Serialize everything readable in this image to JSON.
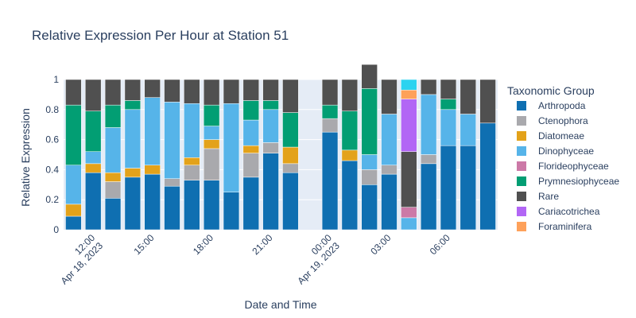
{
  "chart_data": {
    "type": "bar",
    "stacked": true,
    "title": "Relative Expression Per Hour at Station 51",
    "xlabel": "Date and Time",
    "ylabel": "Relative Expression",
    "ylim": [
      0,
      1
    ],
    "yticks": [
      "0",
      "0.2",
      "0.4",
      "0.6",
      "0.8",
      "1"
    ],
    "categories": [
      "2023-04-18 11:00",
      "2023-04-18 12:00",
      "2023-04-18 13:00",
      "2023-04-18 14:00",
      "2023-04-18 15:00",
      "2023-04-18 16:00",
      "2023-04-18 17:00",
      "2023-04-18 18:00",
      "2023-04-18 19:00",
      "2023-04-18 20:00",
      "2023-04-18 21:00",
      "2023-04-18 22:00",
      "2023-04-19 00:00",
      "2023-04-19 01:00",
      "2023-04-19 02:00",
      "2023-04-19 03:00",
      "2023-04-19 04:00",
      "2023-04-19 05:00",
      "2023-04-19 06:00",
      "2023-04-19 07:00",
      "2023-04-19 08:00"
    ],
    "x_tick_labels": [
      {
        "category": "2023-04-18 12:00",
        "lines": [
          "12:00",
          "Apr 18, 2023"
        ]
      },
      {
        "category": "2023-04-18 15:00",
        "lines": [
          "15:00"
        ]
      },
      {
        "category": "2023-04-18 18:00",
        "lines": [
          "18:00"
        ]
      },
      {
        "category": "2023-04-18 21:00",
        "lines": [
          "21:00"
        ]
      },
      {
        "category": "2023-04-19 00:00",
        "lines": [
          "00:00",
          "Apr 19, 2023"
        ]
      },
      {
        "category": "2023-04-19 03:00",
        "lines": [
          "03:00"
        ]
      },
      {
        "category": "2023-04-19 06:00",
        "lines": [
          "06:00"
        ]
      }
    ],
    "legend": {
      "title": "Taxonomic Group",
      "position": "right"
    },
    "grid": true,
    "series": [
      {
        "name": "Arthropoda",
        "color": "#0f6fb1",
        "values": [
          0.09,
          0.38,
          0.21,
          0.35,
          0.37,
          0.29,
          0.33,
          0.33,
          0.25,
          0.35,
          0.51,
          0.38,
          0.65,
          0.46,
          0.3,
          0.37,
          0.0,
          0.44,
          0.56,
          0.56,
          0.71
        ]
      },
      {
        "name": "Ctenophora",
        "color": "#a9a9ad",
        "values": [
          0.0,
          0.0,
          0.11,
          0.0,
          0.0,
          0.05,
          0.1,
          0.21,
          0.0,
          0.16,
          0.07,
          0.06,
          0.09,
          0.0,
          0.1,
          0.06,
          0.0,
          0.06,
          0.0,
          0.0,
          0.0
        ]
      },
      {
        "name": "Diatomeae",
        "color": "#e3a21a",
        "values": [
          0.08,
          0.06,
          0.06,
          0.06,
          0.06,
          0.0,
          0.05,
          0.06,
          0.0,
          0.05,
          0.0,
          0.11,
          0.0,
          0.07,
          0.0,
          0.0,
          0.0,
          0.0,
          0.0,
          0.0,
          0.0
        ]
      },
      {
        "name": "Dinophyceae",
        "color": "#56b4e9",
        "values": [
          0.26,
          0.08,
          0.3,
          0.39,
          0.45,
          0.51,
          0.36,
          0.09,
          0.59,
          0.17,
          0.22,
          0.0,
          0.0,
          0.0,
          0.1,
          0.34,
          0.08,
          0.4,
          0.24,
          0.21,
          0.0
        ]
      },
      {
        "name": "Florideophyceae",
        "color": "#cc79a7",
        "values": [
          0.0,
          0.0,
          0.0,
          0.0,
          0.0,
          0.0,
          0.0,
          0.0,
          0.0,
          0.0,
          0.0,
          0.0,
          0.0,
          0.0,
          0.0,
          0.0,
          0.07,
          0.0,
          0.0,
          0.0,
          0.0
        ]
      },
      {
        "name": "Prymnesiophyceae",
        "color": "#029e73",
        "values": [
          0.4,
          0.27,
          0.15,
          0.06,
          0.0,
          0.0,
          0.0,
          0.14,
          0.0,
          0.13,
          0.06,
          0.23,
          0.09,
          0.26,
          0.44,
          0.0,
          0.0,
          0.0,
          0.07,
          0.0,
          0.0
        ]
      },
      {
        "name": "Rare",
        "color": "#505050",
        "values": [
          0.17,
          0.21,
          0.17,
          0.14,
          0.12,
          0.15,
          0.16,
          0.17,
          0.16,
          0.14,
          0.14,
          0.22,
          0.17,
          0.21,
          0.16,
          0.23,
          0.37,
          0.1,
          0.13,
          0.23,
          0.29
        ]
      },
      {
        "name": "Cariacotrichea",
        "color": "#b266f5",
        "values": [
          0.0,
          0.0,
          0.0,
          0.0,
          0.0,
          0.0,
          0.0,
          0.0,
          0.0,
          0.0,
          0.0,
          0.0,
          0.0,
          0.0,
          0.0,
          0.0,
          0.35,
          0.0,
          0.0,
          0.0,
          0.0
        ]
      },
      {
        "name": "Foraminifera",
        "color": "#fea15a",
        "values": [
          0.0,
          0.0,
          0.0,
          0.0,
          0.0,
          0.0,
          0.0,
          0.0,
          0.0,
          0.0,
          0.0,
          0.0,
          0.0,
          0.0,
          0.0,
          0.0,
          0.06,
          0.0,
          0.0,
          0.0,
          0.0
        ]
      },
      {
        "name": "",
        "color": "#2bd3f0",
        "values": [
          0.0,
          0.0,
          0.0,
          0.0,
          0.0,
          0.0,
          0.0,
          0.0,
          0.0,
          0.0,
          0.0,
          0.0,
          0.0,
          0.0,
          0.0,
          0.0,
          0.07,
          0.0,
          0.0,
          0.0,
          0.0
        ]
      }
    ],
    "legend_entries": [
      "Arthropoda",
      "Ctenophora",
      "Diatomeae",
      "Dinophyceae",
      "Florideophyceae",
      "Prymnesiophyceae",
      "Rare",
      "Cariacotrichea",
      "Foraminifera"
    ]
  }
}
